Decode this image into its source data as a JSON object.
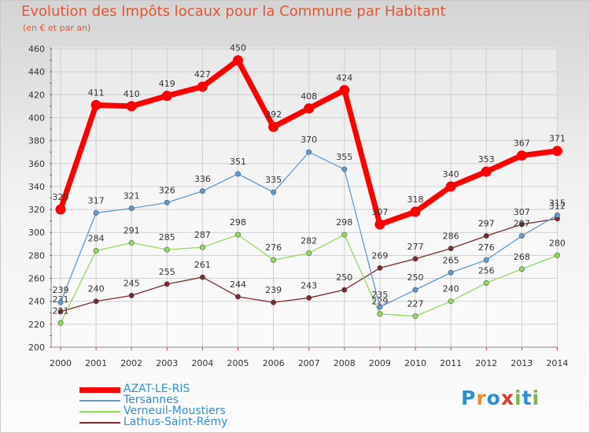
{
  "title": "Evolution des Impôts locaux pour la Commune par Habitant",
  "subtitle": "(en € et par an)",
  "logo": {
    "letters": [
      "P",
      "r",
      "o",
      "x",
      "i",
      "t",
      "i"
    ],
    "colors": [
      "#2e8fd0",
      "#f08a24",
      "#2e8fd0",
      "#e23a2c",
      "#7ab648",
      "#2e8fd0",
      "#7ab648"
    ]
  },
  "chart_data": {
    "type": "line",
    "x": [
      "2000",
      "2001",
      "2002",
      "2003",
      "2004",
      "2005",
      "2006",
      "2007",
      "2008",
      "2009",
      "2010",
      "2011",
      "2012",
      "2013",
      "2014"
    ],
    "ylim": [
      200,
      460
    ],
    "yticks": [
      200,
      220,
      240,
      260,
      280,
      300,
      320,
      340,
      360,
      380,
      400,
      420,
      440,
      460
    ],
    "grid": true,
    "legend_position": "bottom-left",
    "series": [
      {
        "name": "AZAT-LE-RIS",
        "color": "#ff0000",
        "values": [
          320,
          411,
          410,
          419,
          427,
          450,
          392,
          408,
          424,
          307,
          318,
          340,
          353,
          367,
          371
        ]
      },
      {
        "name": "Tersannes",
        "color": "#5d9ad0",
        "values": [
          239,
          317,
          321,
          326,
          336,
          351,
          335,
          370,
          355,
          235,
          250,
          265,
          276,
          297,
          315
        ]
      },
      {
        "name": "Verneuil-Moustiers",
        "color": "#8fdb5a",
        "values": [
          221,
          284,
          291,
          285,
          287,
          298,
          276,
          282,
          298,
          229,
          227,
          240,
          256,
          268,
          280
        ]
      },
      {
        "name": "Lathus-Saint-Rémy",
        "color": "#7a2a2a",
        "values": [
          231,
          240,
          245,
          255,
          261,
          244,
          239,
          243,
          250,
          269,
          277,
          286,
          297,
          307,
          312
        ]
      }
    ]
  }
}
